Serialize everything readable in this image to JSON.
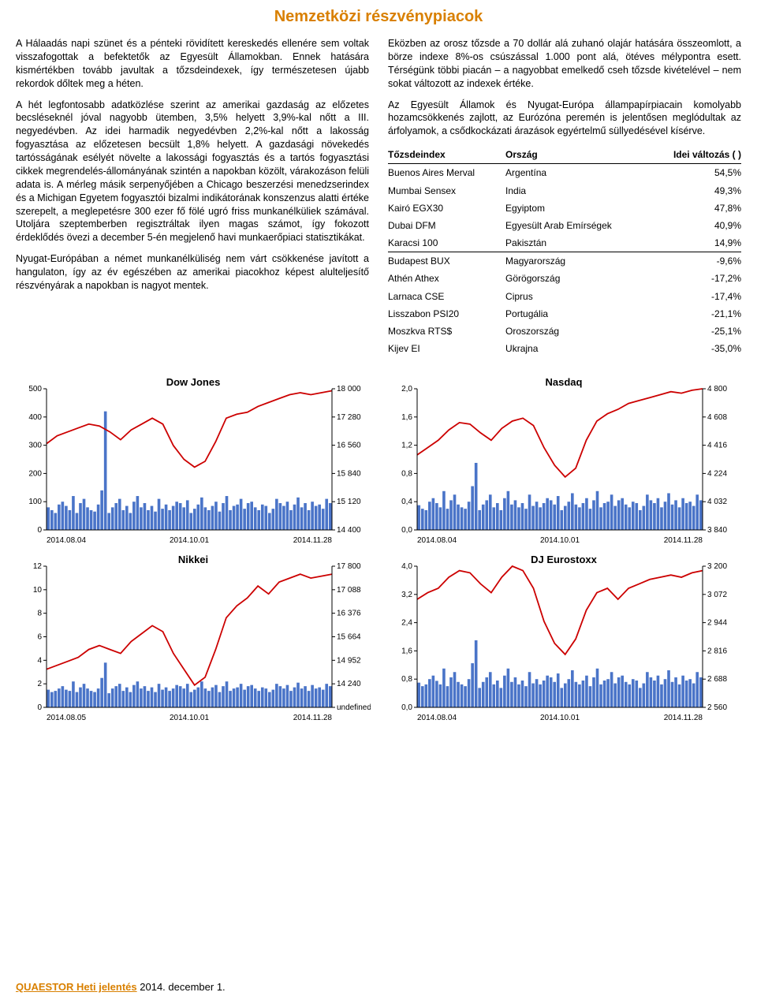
{
  "title": {
    "text": "Nemzetközi részvénypiacok",
    "color": "#d98000"
  },
  "left_paragraphs": [
    "A Hálaadás napi szünet és a pénteki rövidített kereskedés ellenére sem voltak visszafogottak a befektetők az Egyesült Államokban. Ennek hatására kismértékben tovább javultak a tőzsdeindexek, így természetesen újabb rekordok dőltek meg a héten.",
    "A hét legfontosabb adatközlése szerint az amerikai gazdaság az előzetes becsléseknél jóval nagyobb ütemben, 3,5% helyett 3,9%-kal nőtt a III. negyedévben. Az idei harmadik negyedévben 2,2%-kal nőtt a lakosság fogyasztása az előzetesen becsült 1,8% helyett. A gazdasági növekedés tartósságának esélyét növelte a lakossági fogyasztás és a tartós fogyasztási cikkek megrendelés-állományának szintén a napokban közölt, várakozáson felüli adata is.\nA mérleg másik serpenyőjében a Chicago beszerzési menedzserindex és a Michigan Egyetem fogyasztói bizalmi indikátorának konszenzus alatti értéke szerepelt, a meglepetésre 300 ezer fő fölé ugró friss munkanélküliek számával. Utoljára szeptemberben regisztráltak ilyen magas számot, így fokozott érdeklődés övezi a december 5-én megjelenő havi munkaerőpiaci statisztikákat.",
    "Nyugat-Európában a német munkanélküliség nem várt csökkenése javított a hangulaton, így az év egészében az amerikai piacokhoz képest alulteljesítő részvényárak a napokban is nagyot mentek."
  ],
  "right_paragraphs": [
    "Eközben az orosz tőzsde a 70 dollár alá zuhanó olajár hatására összeomlott, a börze indexe 8%-os csúszással 1.000 pont alá, ötéves mélypontra esett. Térségünk többi piacán – a nagyobbat emelkedő cseh tőzsde kivételével – nem sokat változott az indexek értéke.",
    "Az Egyesült Államok és Nyugat-Európa állampapírpiacain komolyabb hozamcsökkenés zajlott, az Eurózóna peremén is jelentősen meglódultak az árfolyamok, a csődkockázati árazások egyértelmű süllyedésével kísérve."
  ],
  "table": {
    "headers": [
      "Tőzsdeindex",
      "Ország",
      "Idei változás ( )"
    ],
    "rows": [
      [
        "Buenos Aires Merval",
        "Argentína",
        "54,5%"
      ],
      [
        "Mumbai Sensex",
        "India",
        "49,3%"
      ],
      [
        "Kairó EGX30",
        "Egyiptom",
        "47,8%"
      ],
      [
        "Dubai DFM",
        "Egyesült Arab Emírségek",
        "40,9%"
      ],
      [
        "Karacsi 100",
        "Pakisztán",
        "14,9%"
      ],
      [
        "Budapest BUX",
        "Magyarország",
        "-9,6%"
      ],
      [
        "Athén Athex",
        "Görögország",
        "-17,2%"
      ],
      [
        "Larnaca CSE",
        "Ciprus",
        "-17,4%"
      ],
      [
        "Lisszabon PSI20",
        "Portugália",
        "-21,1%"
      ],
      [
        "Moszkva RTS$",
        "Oroszország",
        "-25,1%"
      ],
      [
        "Kijev EI",
        "Ukrajna",
        "-35,0%"
      ]
    ],
    "underline_rows": [
      4
    ]
  },
  "charts": [
    {
      "title": "Dow Jones",
      "left_axis": {
        "ticks": [
          "500",
          "400",
          "300",
          "200",
          "100",
          "0"
        ],
        "range": [
          0,
          500
        ]
      },
      "right_axis": {
        "ticks": [
          "18 000",
          "17 280",
          "16 560",
          "15 840",
          "15 120",
          "14 400"
        ],
        "range": [
          14400,
          18000
        ]
      },
      "x_labels": [
        "2014.08.04",
        "2014.10.01",
        "2014.11.28"
      ],
      "line_values": [
        16600,
        16800,
        16900,
        17000,
        17100,
        17050,
        16900,
        16700,
        16950,
        17100,
        17250,
        17100,
        16550,
        16200,
        16000,
        16150,
        16650,
        17250,
        17350,
        17400,
        17550,
        17650,
        17750,
        17850,
        17900,
        17850,
        17900,
        17950
      ],
      "bar_max": 500,
      "bars": [
        80,
        70,
        60,
        90,
        100,
        85,
        70,
        120,
        60,
        95,
        110,
        80,
        70,
        65,
        90,
        140,
        420,
        60,
        80,
        95,
        110,
        70,
        85,
        60,
        100,
        120,
        80,
        95,
        70,
        85,
        65,
        110,
        75,
        90,
        70,
        85,
        100,
        95,
        80,
        105,
        60,
        75,
        90,
        115,
        80,
        70,
        85,
        100,
        65,
        95,
        120,
        70,
        85,
        90,
        110,
        75,
        95,
        100,
        80,
        70,
        90,
        85,
        60,
        75,
        110,
        95,
        85,
        100,
        70,
        90,
        115,
        80,
        95,
        70,
        100,
        85,
        90,
        75,
        110,
        95
      ]
    },
    {
      "title": "Nasdaq",
      "left_axis": {
        "ticks": [
          "2,0",
          "1,6",
          "1,2",
          "0,8",
          "0,4",
          "0,0"
        ],
        "range": [
          0,
          2.0
        ]
      },
      "right_axis": {
        "ticks": [
          "4 800",
          "4 608",
          "4 416",
          "4 224",
          "4 032",
          "3 840"
        ],
        "range": [
          3840,
          4800
        ]
      },
      "x_labels": [
        "2014.08.04",
        "2014.10.01",
        "2014.11.28"
      ],
      "line_values": [
        4350,
        4400,
        4450,
        4520,
        4570,
        4560,
        4500,
        4450,
        4530,
        4580,
        4600,
        4550,
        4400,
        4280,
        4200,
        4260,
        4450,
        4580,
        4630,
        4660,
        4700,
        4720,
        4740,
        4760,
        4780,
        4770,
        4790,
        4800
      ],
      "bar_max": 2.0,
      "bars": [
        0.35,
        0.3,
        0.28,
        0.4,
        0.45,
        0.38,
        0.32,
        0.55,
        0.3,
        0.42,
        0.5,
        0.36,
        0.32,
        0.3,
        0.4,
        0.62,
        0.95,
        0.28,
        0.36,
        0.42,
        0.5,
        0.32,
        0.38,
        0.28,
        0.45,
        0.55,
        0.36,
        0.42,
        0.32,
        0.38,
        0.3,
        0.5,
        0.34,
        0.4,
        0.32,
        0.38,
        0.45,
        0.42,
        0.36,
        0.48,
        0.28,
        0.34,
        0.4,
        0.52,
        0.36,
        0.32,
        0.38,
        0.45,
        0.3,
        0.42,
        0.55,
        0.32,
        0.38,
        0.4,
        0.5,
        0.34,
        0.42,
        0.45,
        0.36,
        0.32,
        0.4,
        0.38,
        0.28,
        0.34,
        0.5,
        0.42,
        0.38,
        0.45,
        0.32,
        0.4,
        0.52,
        0.36,
        0.42,
        0.32,
        0.45,
        0.38,
        0.4,
        0.34,
        0.5,
        0.42
      ]
    },
    {
      "title": "Nikkei",
      "left_axis": {
        "ticks": [
          "12",
          "10",
          "8",
          "6",
          "4",
          "2",
          "0"
        ],
        "range": [
          0,
          12
        ]
      },
      "right_axis": {
        "ticks": [
          "17 800",
          "17 088",
          "16 376",
          "15 664",
          "14 952",
          "14 240"
        ],
        "range": [
          14240,
          17800
        ]
      },
      "x_labels": [
        "2014.08.05",
        "2014.10.01",
        "2014.11.28"
      ],
      "line_values": [
        15200,
        15300,
        15400,
        15500,
        15700,
        15800,
        15700,
        15600,
        15900,
        16100,
        16300,
        16150,
        15600,
        15200,
        14800,
        15000,
        15700,
        16500,
        16800,
        17000,
        17300,
        17100,
        17400,
        17500,
        17600,
        17500,
        17550,
        17600
      ],
      "bar_max": 12,
      "bars": [
        1.5,
        1.3,
        1.4,
        1.6,
        1.8,
        1.5,
        1.4,
        2.2,
        1.3,
        1.7,
        2.0,
        1.6,
        1.4,
        1.3,
        1.6,
        2.5,
        3.8,
        1.2,
        1.6,
        1.8,
        2.0,
        1.4,
        1.7,
        1.3,
        1.9,
        2.2,
        1.6,
        1.8,
        1.4,
        1.7,
        1.3,
        2.0,
        1.5,
        1.7,
        1.4,
        1.6,
        1.9,
        1.8,
        1.6,
        2.0,
        1.3,
        1.5,
        1.7,
        2.2,
        1.6,
        1.4,
        1.7,
        1.9,
        1.3,
        1.8,
        2.2,
        1.4,
        1.6,
        1.7,
        2.0,
        1.5,
        1.8,
        1.9,
        1.6,
        1.4,
        1.7,
        1.6,
        1.3,
        1.5,
        2.0,
        1.8,
        1.6,
        1.9,
        1.4,
        1.7,
        2.1,
        1.6,
        1.8,
        1.4,
        1.9,
        1.6,
        1.7,
        1.5,
        2.0,
        1.8
      ]
    },
    {
      "title": "DJ Eurostoxx",
      "left_axis": {
        "ticks": [
          "4,0",
          "3,2",
          "2,4",
          "1,6",
          "0,8",
          "0,0"
        ],
        "range": [
          0,
          4.0
        ]
      },
      "right_axis": {
        "ticks": [
          "3 200",
          "3 072",
          "2 944",
          "2 816",
          "2 688",
          "2 560"
        ],
        "range": [
          2560,
          3200
        ]
      },
      "x_labels": [
        "2014.08.04",
        "2014.10.01",
        "2014.11.28"
      ],
      "line_values": [
        3050,
        3080,
        3100,
        3150,
        3180,
        3170,
        3120,
        3080,
        3150,
        3200,
        3180,
        3100,
        2950,
        2850,
        2800,
        2870,
        3000,
        3080,
        3100,
        3050,
        3100,
        3120,
        3140,
        3150,
        3160,
        3150,
        3170,
        3180
      ],
      "bar_max": 4.0,
      "bars": [
        0.7,
        0.6,
        0.65,
        0.8,
        0.9,
        0.75,
        0.65,
        1.1,
        0.6,
        0.85,
        1.0,
        0.72,
        0.65,
        0.6,
        0.8,
        1.25,
        1.9,
        0.55,
        0.72,
        0.85,
        1.0,
        0.65,
        0.76,
        0.55,
        0.9,
        1.1,
        0.72,
        0.85,
        0.65,
        0.76,
        0.6,
        1.0,
        0.68,
        0.8,
        0.65,
        0.76,
        0.9,
        0.85,
        0.72,
        0.96,
        0.55,
        0.68,
        0.8,
        1.05,
        0.72,
        0.65,
        0.76,
        0.9,
        0.6,
        0.85,
        1.1,
        0.65,
        0.76,
        0.8,
        1.0,
        0.68,
        0.85,
        0.9,
        0.72,
        0.65,
        0.8,
        0.76,
        0.55,
        0.68,
        1.0,
        0.85,
        0.76,
        0.9,
        0.65,
        0.8,
        1.05,
        0.72,
        0.85,
        0.65,
        0.9,
        0.76,
        0.8,
        0.68,
        1.0,
        0.85
      ]
    }
  ],
  "chart_style": {
    "bar_color": "#4a74c8",
    "line_color": "#cc0000",
    "grid_color": "#000000",
    "axis_font_size": 10
  },
  "footer": {
    "brand": "QUAESTOR Heti jelentés",
    "brand_color": "#d98000",
    "rest": " 2014. december 1."
  }
}
